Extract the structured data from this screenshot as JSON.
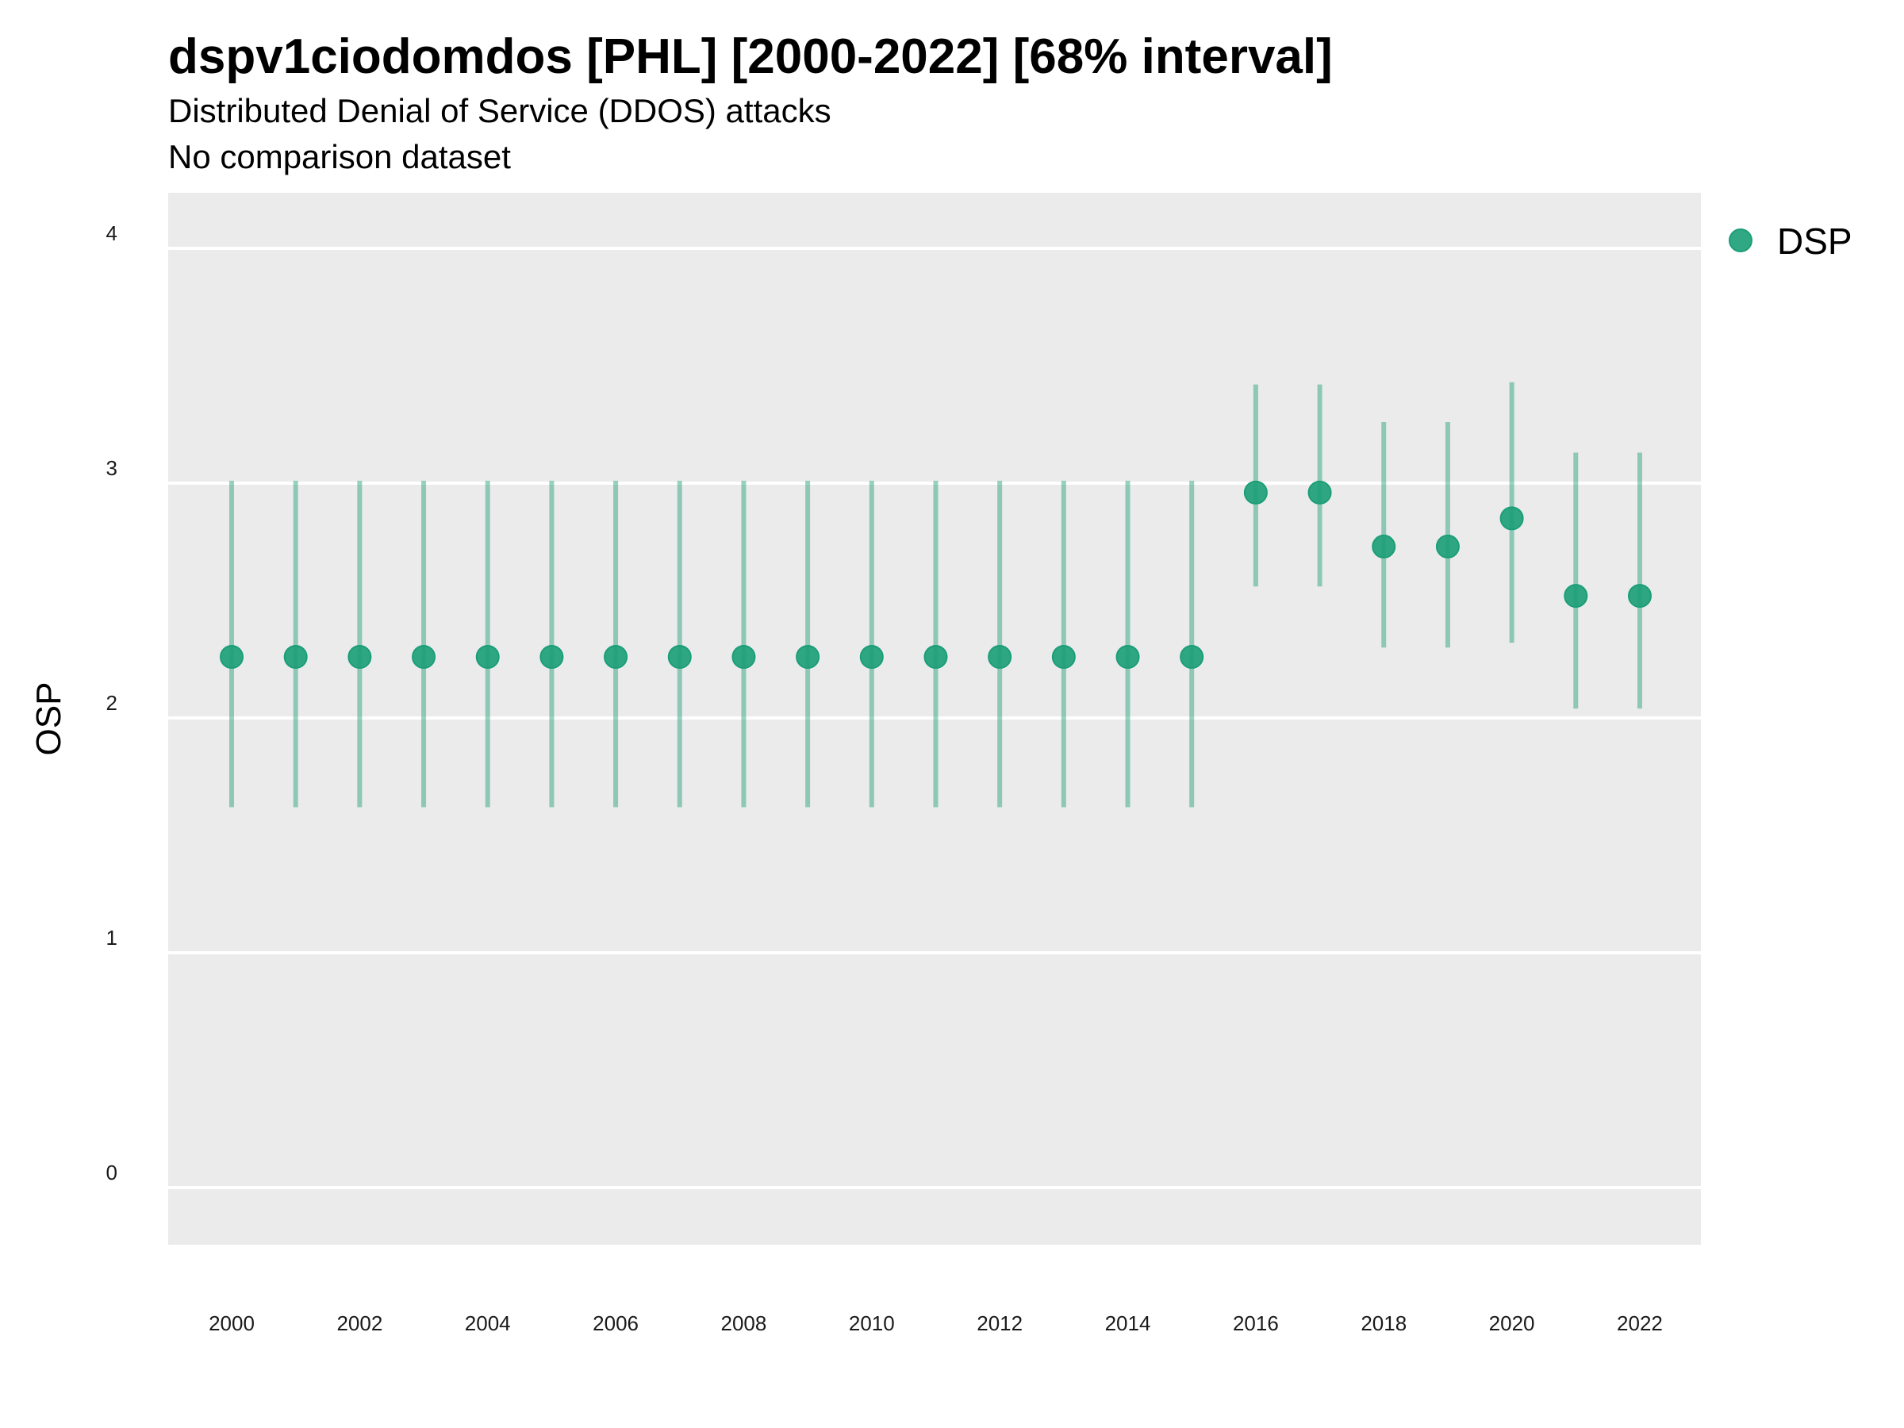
{
  "chart_data": {
    "type": "scatter",
    "title": "dspv1ciodomdos [PHL] [2000-2022] [68% interval]",
    "subtitle": "Distributed Denial of Service (DDOS) attacks",
    "caption": "No comparison dataset",
    "xlabel": "",
    "ylabel": "OSP",
    "ylim": [
      -0.25,
      4.25
    ],
    "yticks": [
      0,
      1,
      2,
      3,
      4
    ],
    "xticks": [
      2000,
      2002,
      2004,
      2006,
      2008,
      2010,
      2012,
      2014,
      2016,
      2018,
      2020,
      2022
    ],
    "grid": "horizontal-major",
    "legend_position": "right",
    "series": [
      {
        "name": "DSP",
        "color": "#1b9e77",
        "x": [
          2000,
          2001,
          2002,
          2003,
          2004,
          2005,
          2006,
          2007,
          2008,
          2009,
          2010,
          2011,
          2012,
          2013,
          2014,
          2015,
          2016,
          2017,
          2018,
          2019,
          2020,
          2021,
          2022
        ],
        "y": [
          2.26,
          2.26,
          2.26,
          2.26,
          2.26,
          2.26,
          2.26,
          2.26,
          2.26,
          2.26,
          2.26,
          2.26,
          2.26,
          2.26,
          2.26,
          2.26,
          2.96,
          2.96,
          2.73,
          2.73,
          2.85,
          2.52,
          2.52
        ],
        "lower": [
          1.62,
          1.62,
          1.62,
          1.62,
          1.62,
          1.62,
          1.62,
          1.62,
          1.62,
          1.62,
          1.62,
          1.62,
          1.62,
          1.62,
          1.62,
          1.62,
          2.56,
          2.56,
          2.3,
          2.3,
          2.32,
          2.04,
          2.04
        ],
        "upper": [
          3.01,
          3.01,
          3.01,
          3.01,
          3.01,
          3.01,
          3.01,
          3.01,
          3.01,
          3.01,
          3.01,
          3.01,
          3.01,
          3.01,
          3.01,
          3.01,
          3.42,
          3.42,
          3.26,
          3.26,
          3.43,
          3.13,
          3.13
        ]
      }
    ]
  }
}
